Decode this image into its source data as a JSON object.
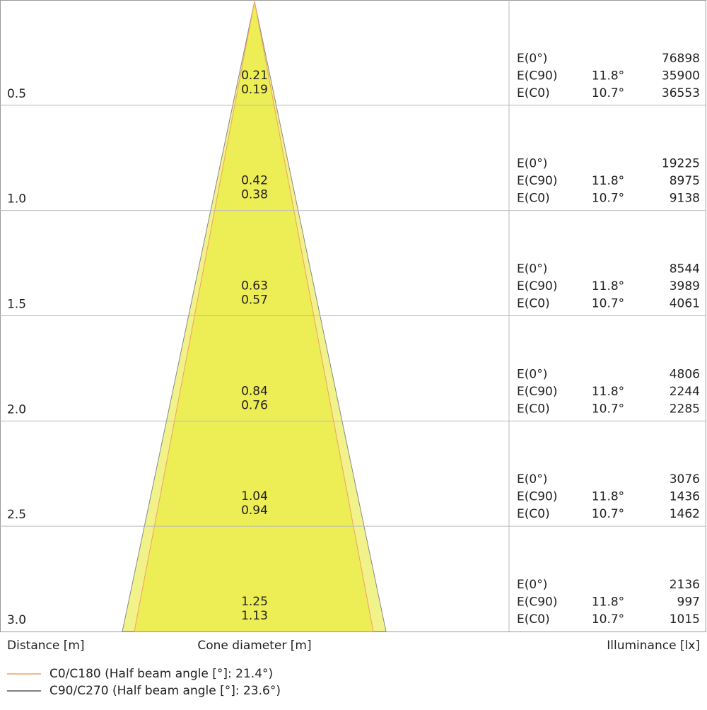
{
  "rows": [
    {
      "distance": "0.5",
      "diameters": [
        "0.21",
        "0.19"
      ],
      "illuminance": [
        {
          "label": "E(0°)",
          "value": "76898"
        },
        {
          "label": "E(C90)",
          "angle": "11.8°",
          "value": "35900"
        },
        {
          "label": "E(C0)",
          "angle": "10.7°",
          "value": "36553"
        }
      ]
    },
    {
      "distance": "1.0",
      "diameters": [
        "0.42",
        "0.38"
      ],
      "illuminance": [
        {
          "label": "E(0°)",
          "value": "19225"
        },
        {
          "label": "E(C90)",
          "angle": "11.8°",
          "value": "8975"
        },
        {
          "label": "E(C0)",
          "angle": "10.7°",
          "value": "9138"
        }
      ]
    },
    {
      "distance": "1.5",
      "diameters": [
        "0.63",
        "0.57"
      ],
      "illuminance": [
        {
          "label": "E(0°)",
          "value": "8544"
        },
        {
          "label": "E(C90)",
          "angle": "11.8°",
          "value": "3989"
        },
        {
          "label": "E(C0)",
          "angle": "10.7°",
          "value": "4061"
        }
      ]
    },
    {
      "distance": "2.0",
      "diameters": [
        "0.84",
        "0.76"
      ],
      "illuminance": [
        {
          "label": "E(0°)",
          "value": "4806"
        },
        {
          "label": "E(C90)",
          "angle": "11.8°",
          "value": "2244"
        },
        {
          "label": "E(C0)",
          "angle": "10.7°",
          "value": "2285"
        }
      ]
    },
    {
      "distance": "2.5",
      "diameters": [
        "1.04",
        "0.94"
      ],
      "illuminance": [
        {
          "label": "E(0°)",
          "value": "3076"
        },
        {
          "label": "E(C90)",
          "angle": "11.8°",
          "value": "1436"
        },
        {
          "label": "E(C0)",
          "angle": "10.7°",
          "value": "1462"
        }
      ]
    },
    {
      "distance": "3.0",
      "diameters": [
        "1.25",
        "1.13"
      ],
      "illuminance": [
        {
          "label": "E(0°)",
          "value": "2136"
        },
        {
          "label": "E(C90)",
          "angle": "11.8°",
          "value": "997"
        },
        {
          "label": "E(C0)",
          "angle": "10.7°",
          "value": "1015"
        }
      ]
    }
  ],
  "footer": {
    "distance": "Distance [m]",
    "cone": "Cone diameter [m]",
    "illuminance": "Illuminance [lx]"
  },
  "legend": [
    "C0/C180 (Half beam angle [°]: 21.4°)",
    "C90/C270 (Half beam angle [°]: 23.6°)"
  ]
}
